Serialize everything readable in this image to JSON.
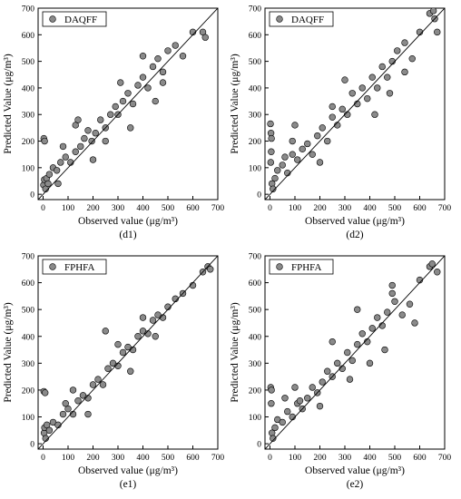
{
  "chart_data": [
    {
      "type": "scatter",
      "panel_label": "(d1)",
      "legend": "DAQFF",
      "xlabel": "Observed value (μg/m³)",
      "ylabel": "Predicted Value (μg/m³)",
      "xlim": [
        -20,
        700
      ],
      "ylim": [
        -20,
        700
      ],
      "x_ticks": [
        0,
        100,
        200,
        300,
        400,
        500,
        600,
        700
      ],
      "y_ticks": [
        0,
        100,
        200,
        300,
        400,
        500,
        600,
        700
      ],
      "reference_line": "y = x",
      "marker_color": "#8a8a8a",
      "points": [
        [
          3,
          210
        ],
        [
          6,
          200
        ],
        [
          2,
          35
        ],
        [
          5,
          55
        ],
        [
          10,
          20
        ],
        [
          14,
          60
        ],
        [
          20,
          40
        ],
        [
          25,
          75
        ],
        [
          40,
          100
        ],
        [
          55,
          90
        ],
        [
          70,
          120
        ],
        [
          90,
          140
        ],
        [
          110,
          120
        ],
        [
          130,
          160
        ],
        [
          150,
          180
        ],
        [
          165,
          210
        ],
        [
          180,
          240
        ],
        [
          195,
          200
        ],
        [
          210,
          230
        ],
        [
          230,
          280
        ],
        [
          250,
          250
        ],
        [
          270,
          300
        ],
        [
          290,
          330
        ],
        [
          300,
          300
        ],
        [
          320,
          350
        ],
        [
          340,
          380
        ],
        [
          360,
          340
        ],
        [
          380,
          410
        ],
        [
          400,
          440
        ],
        [
          420,
          400
        ],
        [
          440,
          480
        ],
        [
          460,
          510
        ],
        [
          480,
          460
        ],
        [
          500,
          540
        ],
        [
          530,
          560
        ],
        [
          560,
          520
        ],
        [
          600,
          610
        ],
        [
          640,
          610
        ],
        [
          650,
          590
        ],
        [
          130,
          260
        ],
        [
          140,
          280
        ],
        [
          200,
          130
        ],
        [
          480,
          420
        ],
        [
          400,
          520
        ],
        [
          80,
          180
        ],
        [
          60,
          40
        ],
        [
          250,
          200
        ],
        [
          310,
          420
        ],
        [
          350,
          250
        ],
        [
          450,
          350
        ]
      ]
    },
    {
      "type": "scatter",
      "panel_label": "(d2)",
      "legend": "DAQFF",
      "xlabel": "Observed value (μg/m³)",
      "ylabel": "Predicted Value (μg/m³)",
      "xlim": [
        -20,
        700
      ],
      "ylim": [
        -20,
        700
      ],
      "x_ticks": [
        0,
        100,
        200,
        300,
        400,
        500,
        600,
        700
      ],
      "y_ticks": [
        0,
        100,
        200,
        300,
        400,
        500,
        600,
        700
      ],
      "reference_line": "y = x",
      "marker_color": "#8a8a8a",
      "points": [
        [
          2,
          265
        ],
        [
          4,
          230
        ],
        [
          6,
          210
        ],
        [
          5,
          160
        ],
        [
          3,
          120
        ],
        [
          8,
          40
        ],
        [
          12,
          20
        ],
        [
          20,
          60
        ],
        [
          30,
          90
        ],
        [
          50,
          110
        ],
        [
          70,
          80
        ],
        [
          90,
          150
        ],
        [
          110,
          130
        ],
        [
          130,
          170
        ],
        [
          150,
          190
        ],
        [
          170,
          150
        ],
        [
          190,
          220
        ],
        [
          210,
          250
        ],
        [
          230,
          200
        ],
        [
          250,
          290
        ],
        [
          270,
          260
        ],
        [
          290,
          320
        ],
        [
          310,
          300
        ],
        [
          330,
          380
        ],
        [
          350,
          340
        ],
        [
          370,
          400
        ],
        [
          390,
          360
        ],
        [
          410,
          440
        ],
        [
          430,
          400
        ],
        [
          450,
          480
        ],
        [
          470,
          440
        ],
        [
          490,
          500
        ],
        [
          510,
          540
        ],
        [
          540,
          570
        ],
        [
          570,
          510
        ],
        [
          600,
          610
        ],
        [
          640,
          680
        ],
        [
          655,
          690
        ],
        [
          660,
          660
        ],
        [
          670,
          610
        ],
        [
          90,
          200
        ],
        [
          100,
          260
        ],
        [
          300,
          430
        ],
        [
          420,
          300
        ],
        [
          540,
          460
        ],
        [
          60,
          140
        ],
        [
          200,
          120
        ],
        [
          480,
          380
        ],
        [
          250,
          330
        ]
      ]
    },
    {
      "type": "scatter",
      "panel_label": "(e1)",
      "legend": "FPHFA",
      "xlabel": "Observed value (μg/m³)",
      "ylabel": "Predicted Value (μg/m³)",
      "xlim": [
        -20,
        700
      ],
      "ylim": [
        -20,
        700
      ],
      "x_ticks": [
        0,
        100,
        200,
        300,
        400,
        500,
        600,
        700
      ],
      "y_ticks": [
        0,
        100,
        200,
        300,
        400,
        500,
        600,
        700
      ],
      "reference_line": "y = x",
      "marker_color": "#8a8a8a",
      "points": [
        [
          3,
          195
        ],
        [
          8,
          190
        ],
        [
          4,
          40
        ],
        [
          6,
          60
        ],
        [
          10,
          20
        ],
        [
          15,
          70
        ],
        [
          25,
          50
        ],
        [
          40,
          80
        ],
        [
          60,
          70
        ],
        [
          80,
          110
        ],
        [
          100,
          130
        ],
        [
          120,
          110
        ],
        [
          140,
          160
        ],
        [
          160,
          180
        ],
        [
          180,
          170
        ],
        [
          200,
          220
        ],
        [
          220,
          240
        ],
        [
          240,
          220
        ],
        [
          260,
          280
        ],
        [
          280,
          300
        ],
        [
          300,
          290
        ],
        [
          320,
          340
        ],
        [
          340,
          360
        ],
        [
          360,
          350
        ],
        [
          380,
          400
        ],
        [
          400,
          420
        ],
        [
          420,
          410
        ],
        [
          440,
          460
        ],
        [
          460,
          480
        ],
        [
          480,
          470
        ],
        [
          500,
          510
        ],
        [
          530,
          540
        ],
        [
          560,
          560
        ],
        [
          600,
          590
        ],
        [
          640,
          640
        ],
        [
          660,
          660
        ],
        [
          670,
          650
        ],
        [
          120,
          200
        ],
        [
          250,
          420
        ],
        [
          180,
          110
        ],
        [
          450,
          400
        ],
        [
          350,
          270
        ],
        [
          90,
          150
        ],
        [
          300,
          370
        ],
        [
          400,
          470
        ]
      ]
    },
    {
      "type": "scatter",
      "panel_label": "(e2)",
      "legend": "FPHFA",
      "xlabel": "Observed value (μg/m³)",
      "ylabel": "Predicted Value (μg/m³)",
      "xlim": [
        -20,
        700
      ],
      "ylim": [
        -20,
        700
      ],
      "x_ticks": [
        0,
        100,
        200,
        300,
        400,
        500,
        600,
        700
      ],
      "y_ticks": [
        0,
        100,
        200,
        300,
        400,
        500,
        600,
        700
      ],
      "reference_line": "y = x",
      "marker_color": "#8a8a8a",
      "points": [
        [
          3,
          210
        ],
        [
          6,
          200
        ],
        [
          5,
          150
        ],
        [
          8,
          40
        ],
        [
          12,
          20
        ],
        [
          20,
          60
        ],
        [
          30,
          90
        ],
        [
          50,
          80
        ],
        [
          70,
          120
        ],
        [
          90,
          100
        ],
        [
          110,
          150
        ],
        [
          130,
          130
        ],
        [
          150,
          170
        ],
        [
          170,
          210
        ],
        [
          190,
          190
        ],
        [
          210,
          230
        ],
        [
          230,
          270
        ],
        [
          250,
          250
        ],
        [
          270,
          300
        ],
        [
          290,
          280
        ],
        [
          310,
          340
        ],
        [
          330,
          310
        ],
        [
          350,
          370
        ],
        [
          370,
          410
        ],
        [
          390,
          380
        ],
        [
          410,
          430
        ],
        [
          430,
          470
        ],
        [
          450,
          440
        ],
        [
          470,
          490
        ],
        [
          490,
          560
        ],
        [
          490,
          590
        ],
        [
          500,
          530
        ],
        [
          530,
          480
        ],
        [
          560,
          520
        ],
        [
          580,
          450
        ],
        [
          600,
          610
        ],
        [
          640,
          660
        ],
        [
          650,
          670
        ],
        [
          670,
          640
        ],
        [
          100,
          210
        ],
        [
          120,
          160
        ],
        [
          200,
          140
        ],
        [
          320,
          240
        ],
        [
          400,
          300
        ],
        [
          460,
          350
        ],
        [
          250,
          380
        ],
        [
          350,
          500
        ],
        [
          60,
          170
        ]
      ]
    }
  ]
}
